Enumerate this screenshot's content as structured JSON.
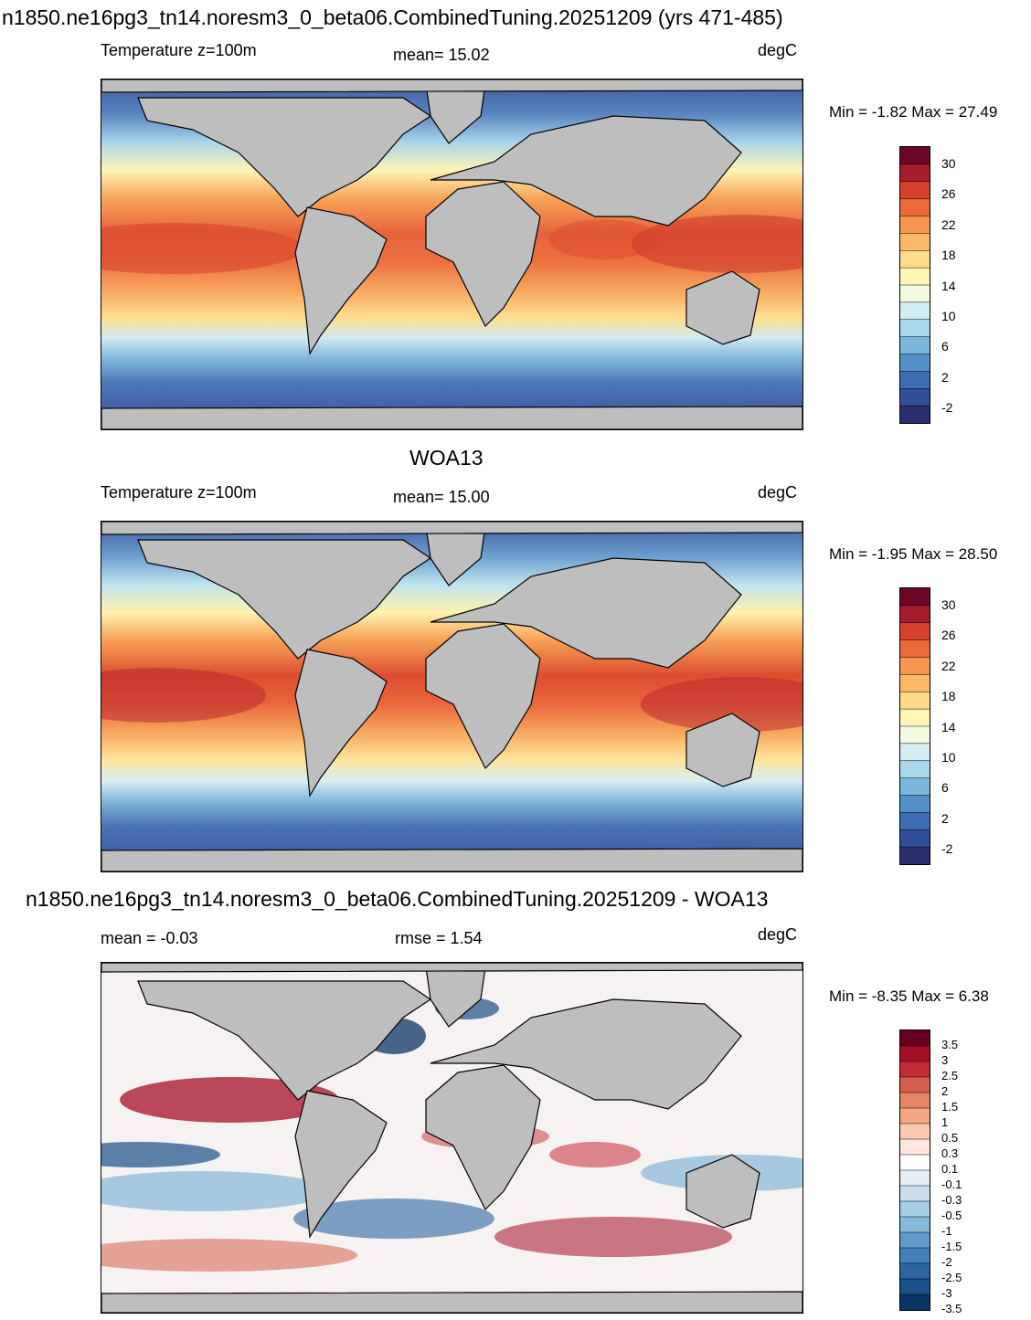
{
  "panels": [
    {
      "title": "n1850.ne16pg3_tn14.noresm3_0_beta06.CombinedTuning.20251209 (yrs 471-485)",
      "left_label": "Temperature z=100m",
      "center_label": "mean=  15.02",
      "units": "degC",
      "minmax": "Min =  -1.82 Max =  27.49",
      "colorbar_labels": [
        "30",
        "26",
        "22",
        "18",
        "14",
        "10",
        "6",
        "2",
        "-2"
      ]
    },
    {
      "title": "WOA13",
      "left_label": "Temperature z=100m",
      "center_label": "mean=  15.00",
      "units": "degC",
      "minmax": "Min =  -1.95 Max =  28.50",
      "colorbar_labels": [
        "30",
        "26",
        "22",
        "18",
        "14",
        "10",
        "6",
        "2",
        "-2"
      ]
    },
    {
      "title": "n1850.ne16pg3_tn14.noresm3_0_beta06.CombinedTuning.20251209 - WOA13",
      "left_label": "mean =  -0.03",
      "center_label": "rmse =   1.54",
      "units": "degC",
      "minmax": "Min =  -8.35 Max =   6.38",
      "colorbar_labels": [
        "3.5",
        "3",
        "2.5",
        "2",
        "1.5",
        "1",
        "0.5",
        "0.3",
        "0.1",
        "-0.1",
        "-0.3",
        "-0.5",
        "-1",
        "-1.5",
        "-2",
        "-2.5",
        "-3",
        "-3.5"
      ]
    }
  ],
  "colors": {
    "land": "#bebebe",
    "temp_scale": [
      "#6b0625",
      "#a51d2d",
      "#d7412b",
      "#ea6a3c",
      "#f5954f",
      "#fbb869",
      "#fedb8b",
      "#fff5b5",
      "#f2fbe2",
      "#d3eef3",
      "#a8d8ea",
      "#7ab7dd",
      "#5490c8",
      "#3f6db3",
      "#324f9a",
      "#2c2f6d"
    ],
    "diff_scale": [
      "#67001f",
      "#a50f26",
      "#c42a33",
      "#d6604d",
      "#e58467",
      "#f4a582",
      "#fbc9b0",
      "#fde6db",
      "#ffffff",
      "#e3eef6",
      "#c9dfee",
      "#a6cee3",
      "#86b8d9",
      "#5e9bc8",
      "#4281b9",
      "#2b66a3",
      "#1a4f88",
      "#0b3566"
    ]
  }
}
